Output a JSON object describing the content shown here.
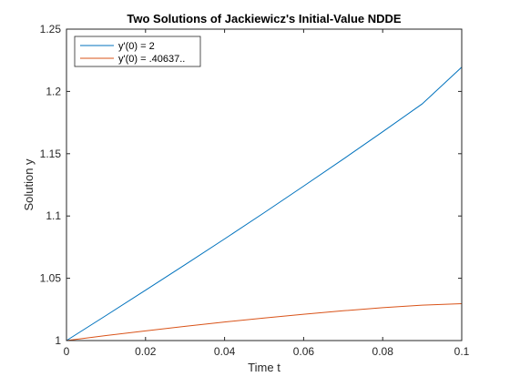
{
  "chart_data": {
    "type": "line",
    "title": "Two Solutions of Jackiewicz's Initial-Value NDDE",
    "xlabel": "Time t",
    "ylabel": "Solution y",
    "xlim": [
      0,
      0.1
    ],
    "ylim": [
      1,
      1.25
    ],
    "xticks": [
      0,
      0.02,
      0.04,
      0.06,
      0.08,
      0.1
    ],
    "xtick_labels": [
      "0",
      "0.02",
      "0.04",
      "0.06",
      "0.08",
      "0.1"
    ],
    "yticks": [
      1,
      1.05,
      1.1,
      1.15,
      1.2,
      1.25
    ],
    "ytick_labels": [
      "1",
      "1.05",
      "1.1",
      "1.15",
      "1.2",
      "1.25"
    ],
    "grid": false,
    "legend_position": "top-left",
    "series": [
      {
        "name": "y'(0) = 2",
        "color": "#0072BD",
        "x": [
          0,
          0.01,
          0.02,
          0.03,
          0.04,
          0.05,
          0.06,
          0.07,
          0.08,
          0.09,
          0.1
        ],
        "y": [
          1.0,
          1.0201,
          1.0404,
          1.0609,
          1.0816,
          1.1026,
          1.124,
          1.1456,
          1.1676,
          1.19,
          1.2195
        ]
      },
      {
        "name": "y'(0) = .40637..",
        "color": "#D95319",
        "x": [
          0,
          0.01,
          0.02,
          0.03,
          0.04,
          0.05,
          0.06,
          0.07,
          0.08,
          0.09,
          0.1
        ],
        "y": [
          1.0,
          1.004,
          1.0078,
          1.0114,
          1.0149,
          1.0181,
          1.0211,
          1.0239,
          1.0264,
          1.0284,
          1.0296
        ]
      }
    ]
  }
}
